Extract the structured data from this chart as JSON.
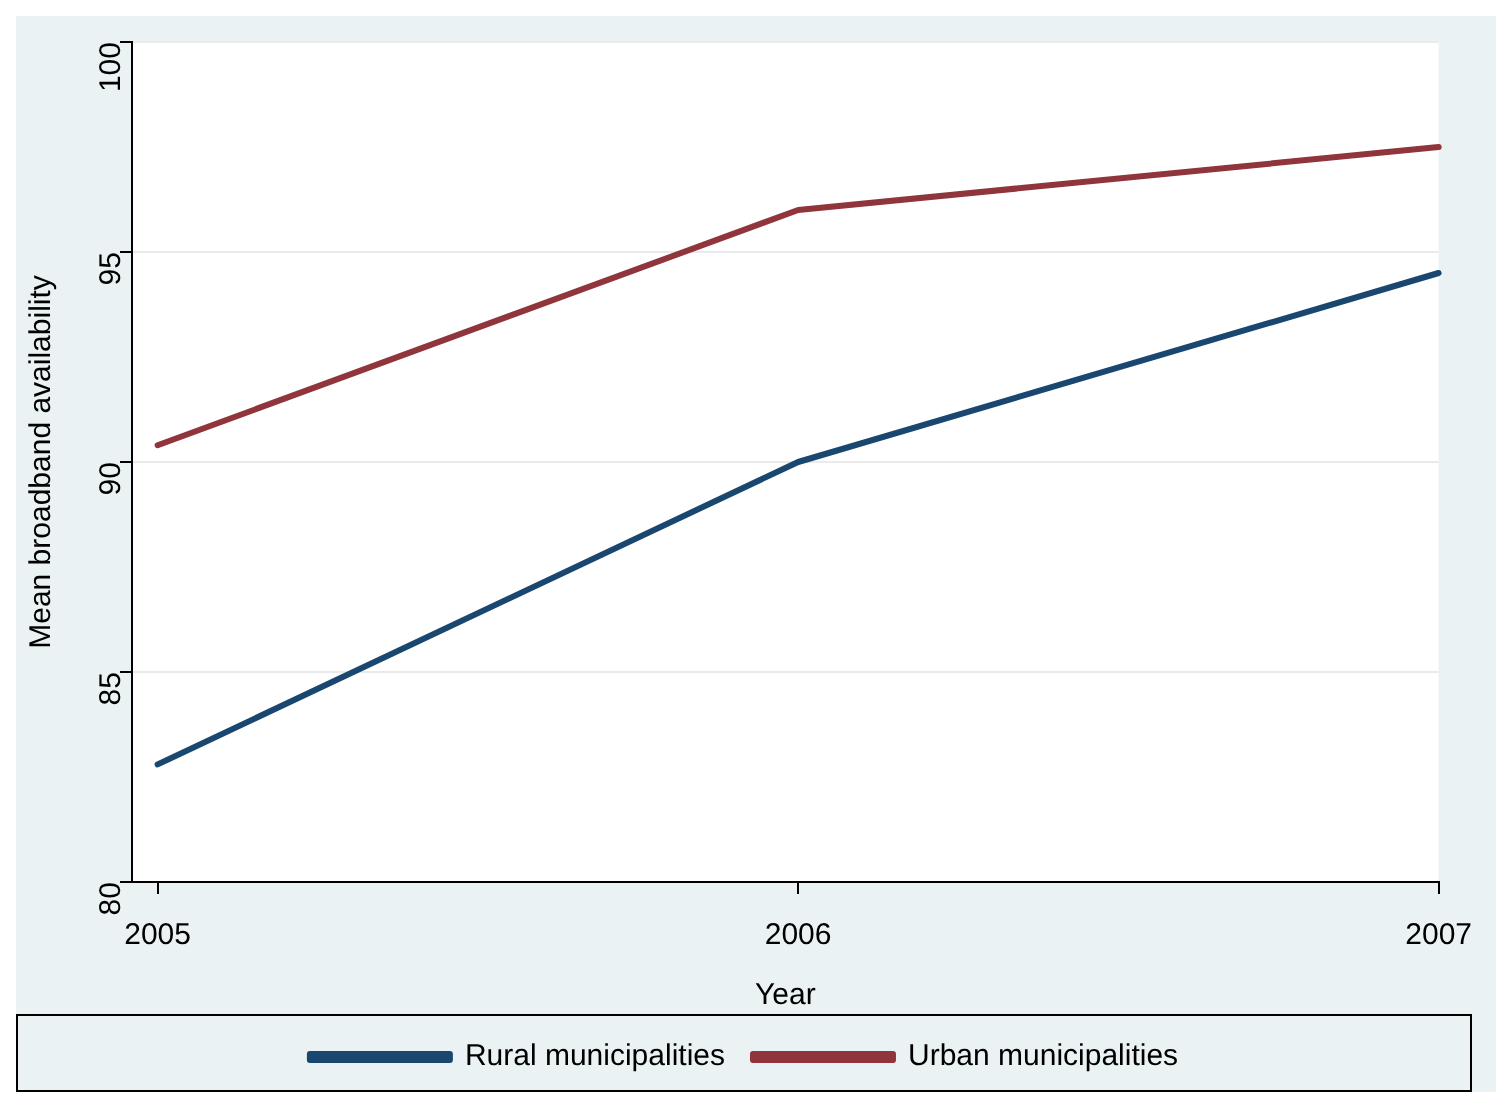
{
  "chart_data": {
    "type": "line",
    "xlabel": "Year",
    "ylabel": "Mean broadband availability",
    "x": [
      2005,
      2006,
      2007
    ],
    "series": [
      {
        "name": "Rural municipalities",
        "color": "#1a476f",
        "values": [
          82.8,
          90.0,
          94.5
        ]
      },
      {
        "name": "Urban municipalities",
        "color": "#90353b",
        "values": [
          90.4,
          96.0,
          97.5
        ]
      }
    ],
    "xlim": [
      2004.96,
      2007
    ],
    "xticks": [
      2005,
      2006,
      2007
    ],
    "ylim": [
      80,
      100
    ],
    "yticks": [
      80,
      85,
      90,
      95,
      100
    ],
    "grid": "y",
    "legend": "bottom",
    "marker": "none",
    "line_style": "solid"
  }
}
